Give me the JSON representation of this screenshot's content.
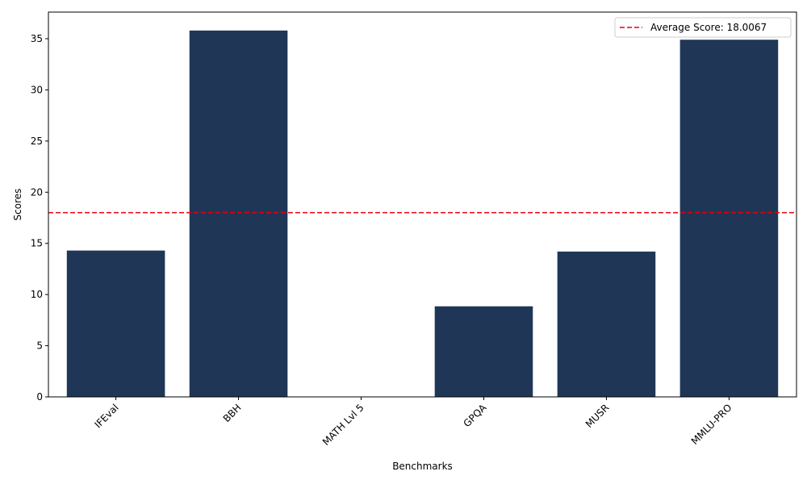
{
  "chart_data": {
    "type": "bar",
    "categories": [
      "IFEval",
      "BBH",
      "MATH Lvl 5",
      "GPQA",
      "MUSR",
      "MMLU-PRO"
    ],
    "values": [
      14.3,
      35.8,
      0.0,
      8.85,
      14.2,
      34.9
    ],
    "xlabel": "Benchmarks",
    "ylabel": "Scores",
    "ylim": [
      0,
      37.6
    ],
    "yticks": [
      0,
      5,
      10,
      15,
      20,
      25,
      30,
      35
    ],
    "bar_color": "#1f3657",
    "reference_line": {
      "value": 18.0067,
      "label": "Average Score: 18.0067",
      "color": "#e8000b",
      "style": "dashed"
    },
    "legend_position": "top-right",
    "grid": false,
    "xtick_rotation": 45
  }
}
